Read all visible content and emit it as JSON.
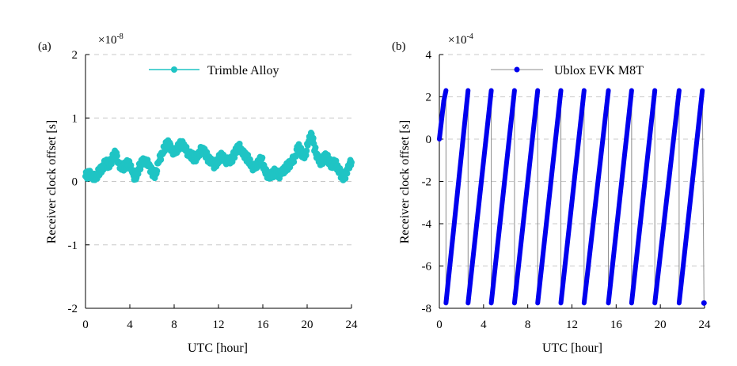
{
  "chart_data": [
    {
      "type": "scatter",
      "panel_label": "(a)",
      "xlabel": "UTC [hour]",
      "ylabel": "Receiver clock offset [s]",
      "scale_prefix": "×10",
      "scale_exponent": "-8",
      "xlim": [
        0,
        24
      ],
      "ylim": [
        -2,
        2
      ],
      "x_ticks": [
        "0",
        "4",
        "8",
        "12",
        "16",
        "20",
        "24"
      ],
      "y_ticks": [
        "-2",
        "-1",
        "0",
        "1",
        "2"
      ],
      "grid": "horizontal dashed",
      "legend_position": "top-center",
      "color": "#1fc4c4",
      "series": [
        {
          "name": "Trimble Alloy",
          "x": [
            0.0,
            0.3,
            0.6,
            0.9,
            1.2,
            1.5,
            1.8,
            2.1,
            2.4,
            2.7,
            3.0,
            3.3,
            3.6,
            3.9,
            4.2,
            4.5,
            4.8,
            5.1,
            5.4,
            5.7,
            6.0,
            6.3,
            6.6,
            6.9,
            7.2,
            7.5,
            7.8,
            8.1,
            8.4,
            8.7,
            9.0,
            9.3,
            9.6,
            9.9,
            10.2,
            10.5,
            10.8,
            11.1,
            11.4,
            11.7,
            12.0,
            12.3,
            12.6,
            12.9,
            13.2,
            13.5,
            13.8,
            14.1,
            14.4,
            14.7,
            15.0,
            15.3,
            15.6,
            15.9,
            16.2,
            16.5,
            16.8,
            17.1,
            17.4,
            17.7,
            18.0,
            18.3,
            18.6,
            18.9,
            19.2,
            19.5,
            19.8,
            20.1,
            20.4,
            20.7,
            21.0,
            21.3,
            21.6,
            21.9,
            22.2,
            22.5,
            22.8,
            23.1,
            23.4,
            23.7,
            24.0
          ],
          "values": [
            0.08,
            0.12,
            0.1,
            0.05,
            0.15,
            0.2,
            0.3,
            0.25,
            0.35,
            0.45,
            0.3,
            0.2,
            0.25,
            0.3,
            0.15,
            0.05,
            0.2,
            0.3,
            0.35,
            0.25,
            0.15,
            0.1,
            0.3,
            0.45,
            0.55,
            0.6,
            0.5,
            0.45,
            0.55,
            0.6,
            0.5,
            0.45,
            0.4,
            0.35,
            0.45,
            0.5,
            0.45,
            0.35,
            0.3,
            0.25,
            0.35,
            0.4,
            0.35,
            0.3,
            0.35,
            0.45,
            0.55,
            0.5,
            0.4,
            0.35,
            0.25,
            0.2,
            0.3,
            0.35,
            0.15,
            0.1,
            0.1,
            0.15,
            0.1,
            0.12,
            0.2,
            0.25,
            0.3,
            0.4,
            0.55,
            0.45,
            0.4,
            0.6,
            0.75,
            0.5,
            0.35,
            0.3,
            0.4,
            0.35,
            0.25,
            0.3,
            0.2,
            0.1,
            0.05,
            0.25,
            0.3
          ]
        }
      ]
    },
    {
      "type": "line",
      "panel_label": "(b)",
      "xlabel": "UTC [hour]",
      "ylabel": "Receiver clock offset [s]",
      "scale_prefix": "×10",
      "scale_exponent": "-4",
      "xlim": [
        0,
        24
      ],
      "ylim": [
        -8,
        4
      ],
      "x_ticks": [
        "0",
        "4",
        "8",
        "12",
        "16",
        "20",
        "24"
      ],
      "y_ticks": [
        "-8",
        "-6",
        "-4",
        "-2",
        "0",
        "2",
        "4"
      ],
      "grid": "horizontal dashed",
      "legend_position": "top-center",
      "color": "#0000ee",
      "connector_color": "#8c8c8c",
      "series": [
        {
          "name": "Ublox EVK M8T",
          "x": [
            0.0,
            0.4,
            0.6,
            0.6,
            2.6,
            2.6,
            4.7,
            4.7,
            6.8,
            6.8,
            8.9,
            8.9,
            11.0,
            11.0,
            13.1,
            13.1,
            15.3,
            15.3,
            17.4,
            17.4,
            19.5,
            19.5,
            21.7,
            21.7,
            23.8,
            23.95
          ],
          "values": [
            0.0,
            1.8,
            2.3,
            -7.75,
            2.3,
            -7.75,
            2.3,
            -7.75,
            2.3,
            -7.75,
            2.3,
            -7.75,
            2.3,
            -7.75,
            2.3,
            -7.75,
            2.3,
            -7.75,
            2.3,
            -7.75,
            2.3,
            -7.75,
            2.3,
            -7.75,
            2.3,
            -7.75
          ]
        }
      ]
    }
  ]
}
